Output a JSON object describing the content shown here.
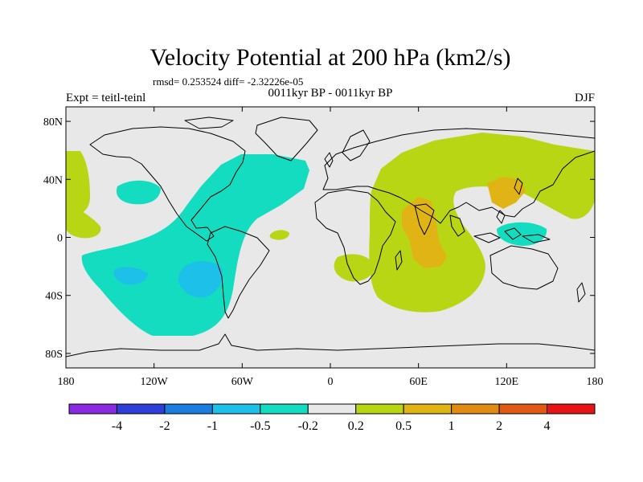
{
  "chart_data": {
    "type": "heatmap",
    "title": "Velocity Potential at 200 hPa (km2/s)",
    "stats_line": "rmsd= 0.253524  diff= -2.32226e-05",
    "subtitle": "0011kyr BP - 0011kyr BP",
    "left_label": "Expt = teitl-teinl",
    "right_label": "DJF",
    "x_axis": {
      "range": [
        -180,
        180
      ],
      "ticks": [
        -180,
        -120,
        -60,
        0,
        60,
        120,
        180
      ],
      "tick_labels": [
        "180",
        "120W",
        "60W",
        "0",
        "60E",
        "120E",
        "180"
      ]
    },
    "y_axis": {
      "range": [
        -90,
        90
      ],
      "ticks": [
        80,
        40,
        0,
        -40,
        -80
      ],
      "tick_labels": [
        "80N",
        "40N",
        "0",
        "40S",
        "80S"
      ]
    },
    "colorbar": {
      "colors": [
        "#8a2be2",
        "#2d3fd6",
        "#1c7de0",
        "#1cc0e8",
        "#14dcc0",
        "#e8e8e8",
        "#b8d614",
        "#e0b414",
        "#e08c14",
        "#e05a14",
        "#e61414"
      ],
      "labels": [
        "-4",
        "-2",
        "-1",
        "-0.5",
        "-0.2",
        "0.2",
        "0.5",
        "1",
        "2",
        "4"
      ]
    },
    "regions": [
      {
        "level": "0.2 to 0.5",
        "color": "#b8d614",
        "label": "Eastern Hemisphere / Indian Ocean positive anomaly"
      },
      {
        "level": "0.5 to 1",
        "color": "#e0b414",
        "label": "Arabian Sea / Indian Ocean core"
      },
      {
        "level": "0.5 to 1",
        "color": "#e0b414",
        "label": "East Asia core"
      },
      {
        "level": "-0.5 to -0.2",
        "color": "#14dcc0",
        "label": "Americas / Atlantic negative anomaly"
      },
      {
        "level": "-1 to -0.5",
        "color": "#1cc0e8",
        "label": "South Pacific minimum"
      },
      {
        "level": "-0.5 to -0.2",
        "color": "#14dcc0",
        "label": "Maritime Continent negative"
      }
    ]
  }
}
